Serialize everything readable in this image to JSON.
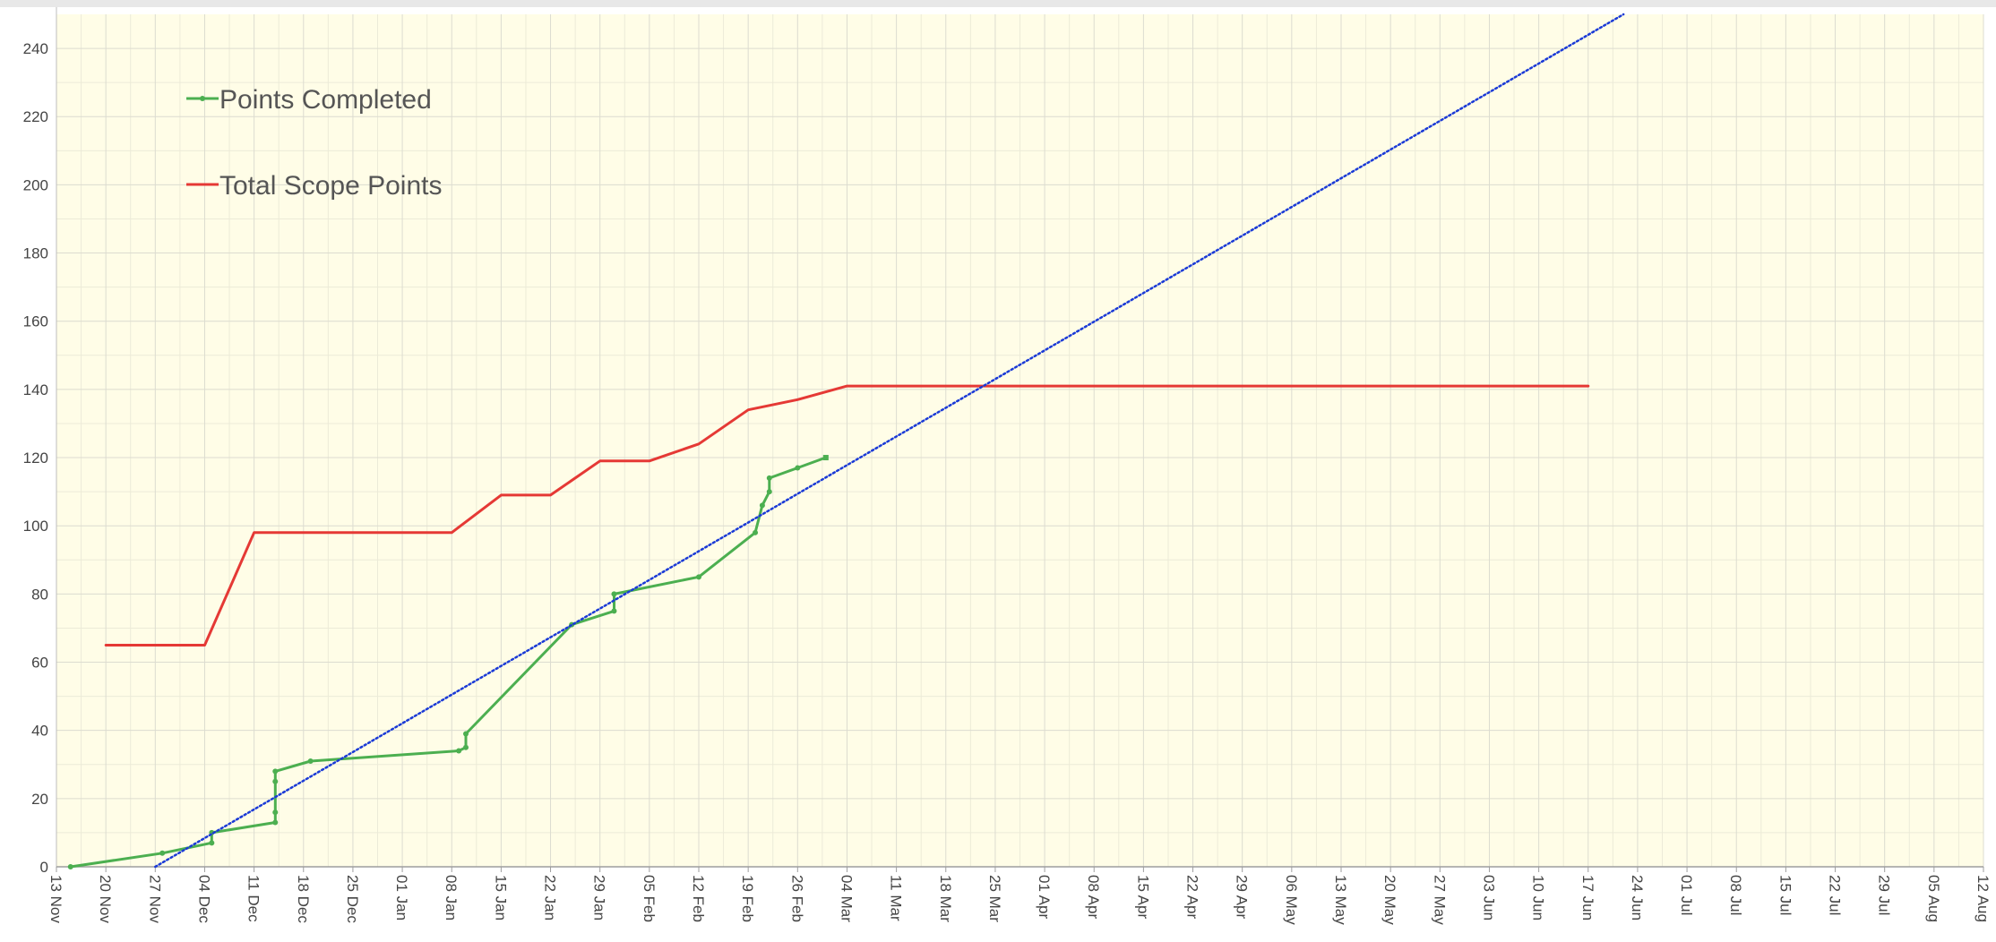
{
  "chart_data": {
    "type": "line",
    "title": "",
    "xlabel": "",
    "ylabel": "",
    "x_axis": {
      "type": "date",
      "range": [
        "2023-11-13",
        "2024-08-12"
      ],
      "tick_labels": [
        "13 Nov",
        "20 Nov",
        "27 Nov",
        "04 Dec",
        "11 Dec",
        "18 Dec",
        "25 Dec",
        "01 Jan",
        "08 Jan",
        "15 Jan",
        "22 Jan",
        "29 Jan",
        "05 Feb",
        "12 Feb",
        "19 Feb",
        "26 Feb",
        "04 Mar",
        "11 Mar",
        "18 Mar",
        "25 Mar",
        "01 Apr",
        "08 Apr",
        "15 Apr",
        "22 Apr",
        "29 Apr",
        "06 May",
        "13 May",
        "20 May",
        "27 May",
        "03 Jun",
        "10 Jun",
        "17 Jun",
        "24 Jun",
        "01 Jul",
        "08 Jul",
        "15 Jul",
        "22 Jul",
        "29 Jul",
        "05 Aug",
        "12 Aug"
      ]
    },
    "y_axis": {
      "range": [
        0,
        250
      ],
      "tick_labels": [
        "0",
        "20",
        "40",
        "60",
        "80",
        "100",
        "120",
        "140",
        "160",
        "180",
        "200",
        "220",
        "240"
      ],
      "tick_values": [
        0,
        20,
        40,
        60,
        80,
        100,
        120,
        140,
        160,
        180,
        200,
        220,
        240
      ]
    },
    "grid": true,
    "legend_position": "top-left",
    "background_color": "#fffde7",
    "series": [
      {
        "name": "Points Completed",
        "style": "line-with-markers",
        "color": "#4caf50",
        "points": [
          [
            "2023-11-15",
            0
          ],
          [
            "2023-11-28",
            4
          ],
          [
            "2023-12-05",
            7
          ],
          [
            "2023-12-05",
            10
          ],
          [
            "2023-12-14",
            13
          ],
          [
            "2023-12-14",
            16
          ],
          [
            "2023-12-14",
            25
          ],
          [
            "2023-12-14",
            28
          ],
          [
            "2023-12-19",
            31
          ],
          [
            "2024-01-09",
            34
          ],
          [
            "2024-01-10",
            35
          ],
          [
            "2024-01-10",
            39
          ],
          [
            "2024-01-25",
            71
          ],
          [
            "2024-01-31",
            75
          ],
          [
            "2024-01-31",
            80
          ],
          [
            "2024-02-12",
            85
          ],
          [
            "2024-02-20",
            98
          ],
          [
            "2024-02-21",
            106
          ],
          [
            "2024-02-22",
            110
          ],
          [
            "2024-02-22",
            114
          ],
          [
            "2024-02-26",
            117
          ],
          [
            "2024-03-01",
            120
          ]
        ]
      },
      {
        "name": "Total Scope Points",
        "style": "line",
        "color": "#e53935",
        "points": [
          [
            "2023-11-20",
            65
          ],
          [
            "2023-12-04",
            65
          ],
          [
            "2023-12-11",
            98
          ],
          [
            "2024-01-08",
            98
          ],
          [
            "2024-01-15",
            109
          ],
          [
            "2024-01-22",
            109
          ],
          [
            "2024-01-29",
            119
          ],
          [
            "2024-02-05",
            119
          ],
          [
            "2024-02-12",
            124
          ],
          [
            "2024-02-19",
            134
          ],
          [
            "2024-02-26",
            137
          ],
          [
            "2024-03-04",
            141
          ],
          [
            "2024-06-17",
            141
          ]
        ]
      },
      {
        "name": "",
        "style": "dotted-trendline",
        "color": "#1a3ad6",
        "points": [
          [
            "2023-11-27",
            0
          ],
          [
            "2024-06-22",
            250
          ]
        ]
      }
    ]
  }
}
